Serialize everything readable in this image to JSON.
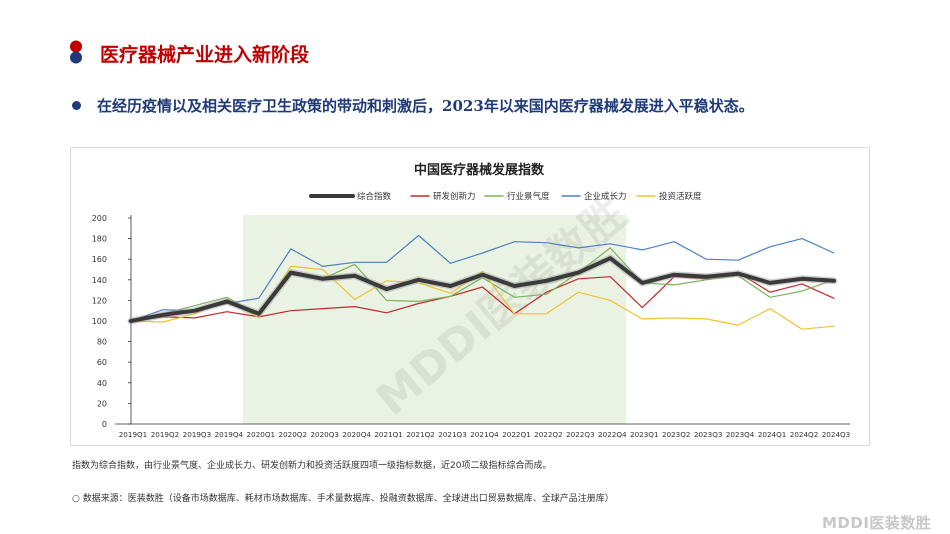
{
  "header": {
    "title": "医疗器械产业进入新阶段"
  },
  "bullet": {
    "text": "在经历疫情以及相关医疗卫生政策的带动和刺激后，2023年以来国内医疗器械发展进入平稳状态。"
  },
  "chart_data": {
    "type": "line",
    "title": "中国医疗器械发展指数",
    "legend_position": "top",
    "grid": false,
    "categories": [
      "2019Q1",
      "2019Q2",
      "2019Q3",
      "2019Q4",
      "2020Q1",
      "2020Q2",
      "2020Q3",
      "2020Q4",
      "2021Q1",
      "2021Q2",
      "2021Q3",
      "2021Q4",
      "2022Q1",
      "2022Q2",
      "2022Q3",
      "2022Q4",
      "2023Q1",
      "2023Q2",
      "2023Q3",
      "2023Q4",
      "2024Q1",
      "2024Q2",
      "2024Q3"
    ],
    "y_ticks": [
      "0",
      "20",
      "40",
      "60",
      "80",
      "100",
      "120",
      "140",
      "160",
      "180",
      "200"
    ],
    "ylim": [
      0,
      200
    ],
    "highlight_range": [
      "2020Q1",
      "2022Q4"
    ],
    "highlight_color": "#eaf3e3",
    "series": [
      {
        "name": "综合指数",
        "color": "#3a3a3a",
        "width": 4,
        "values": [
          100,
          106,
          110,
          119,
          107,
          147,
          141,
          144,
          131,
          140,
          134,
          145,
          134,
          139,
          147,
          161,
          137,
          145,
          143,
          146,
          137,
          141,
          139
        ]
      },
      {
        "name": "研发创新力",
        "color": "#c62828",
        "width": 1.2,
        "values": [
          100,
          104,
          103,
          109,
          104,
          110,
          112,
          114,
          108,
          117,
          124,
          133,
          107,
          128,
          141,
          143,
          113,
          143,
          141,
          147,
          128,
          136,
          122
        ]
      },
      {
        "name": "行业景气度",
        "color": "#7cb35b",
        "width": 1.2,
        "values": [
          100,
          107,
          115,
          123,
          106,
          145,
          141,
          155,
          120,
          119,
          124,
          142,
          123,
          126,
          147,
          171,
          137,
          135,
          140,
          144,
          123,
          129,
          140
        ]
      },
      {
        "name": "企业成长力",
        "color": "#4d7fc4",
        "width": 1.2,
        "values": [
          100,
          111,
          110,
          117,
          122,
          170,
          153,
          157,
          157,
          183,
          156,
          166,
          177,
          176,
          171,
          175,
          169,
          177,
          160,
          159,
          172,
          180,
          166
        ]
      },
      {
        "name": "投资活跃度",
        "color": "#f2c12e",
        "width": 1.2,
        "values": [
          100,
          99,
          107,
          121,
          103,
          153,
          150,
          121,
          139,
          137,
          127,
          148,
          107,
          107,
          128,
          120,
          102,
          103,
          102,
          96,
          112,
          92,
          95
        ]
      }
    ]
  },
  "watermark": {
    "text": "MDDI医装数胜"
  },
  "note": {
    "text": "指数为综合指数，由行业景气度、企业成长力、研发创新力和投资活跃度四项一级指标数据，近20项二级指标综合而成。"
  },
  "source": {
    "text": "数据来源：医装数胜（设备市场数据库、耗材市场数据库、手术量数据库、投融资数据库、全球进出口贸易数据库、全球产品注册库）"
  },
  "logo": {
    "text": "MDDI医装数胜"
  },
  "colors": {
    "title_red": "#c00000",
    "navy": "#1f3a78"
  }
}
